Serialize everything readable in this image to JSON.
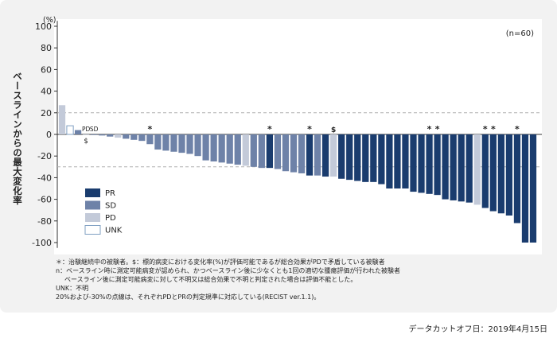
{
  "chart_data": {
    "type": "bar",
    "y_unit": "(%)",
    "ylabel": "ベースラインからの最大変化率",
    "ylim": [
      -105,
      105
    ],
    "yticks": [
      100,
      80,
      60,
      40,
      20,
      0,
      -20,
      -40,
      -60,
      -80,
      -100
    ],
    "n_label": "(n=60)",
    "reference_lines": [
      20,
      -30
    ],
    "grid": false,
    "legend_position": "bottom-left",
    "legend": [
      {
        "key": "PR",
        "label": "PR",
        "color": "#1a3c6e"
      },
      {
        "key": "SD",
        "label": "SD",
        "color": "#6e82a8"
      },
      {
        "key": "PD",
        "label": "PD",
        "color": "#c3cad9"
      },
      {
        "key": "UNK",
        "label": "UNK",
        "color": "#ffffff",
        "stroke": "#7f9fc2"
      }
    ],
    "bars": [
      {
        "value": 27,
        "response": "PD"
      },
      {
        "value": 8,
        "response": "UNK"
      },
      {
        "value": 4,
        "response": "SD"
      },
      {
        "value": 0,
        "response": "PD",
        "label": "PD"
      },
      {
        "value": 0,
        "response": "SD",
        "label": "SD",
        "sublabel": "$"
      },
      {
        "value": -1,
        "response": "SD"
      },
      {
        "value": -2,
        "response": "SD"
      },
      {
        "value": -3,
        "response": "PD"
      },
      {
        "value": -4,
        "response": "SD"
      },
      {
        "value": -5,
        "response": "SD"
      },
      {
        "value": -6,
        "response": "SD"
      },
      {
        "value": -9,
        "response": "SD",
        "marker": "*"
      },
      {
        "value": -14,
        "response": "SD"
      },
      {
        "value": -15,
        "response": "SD"
      },
      {
        "value": -16,
        "response": "SD"
      },
      {
        "value": -17,
        "response": "SD"
      },
      {
        "value": -18,
        "response": "SD"
      },
      {
        "value": -20,
        "response": "SD"
      },
      {
        "value": -24,
        "response": "SD"
      },
      {
        "value": -25,
        "response": "SD"
      },
      {
        "value": -26,
        "response": "SD"
      },
      {
        "value": -27,
        "response": "SD"
      },
      {
        "value": -28,
        "response": "SD"
      },
      {
        "value": -29,
        "response": "PD"
      },
      {
        "value": -30,
        "response": "SD"
      },
      {
        "value": -31,
        "response": "SD"
      },
      {
        "value": -31,
        "response": "PR",
        "marker": "*"
      },
      {
        "value": -32,
        "response": "SD"
      },
      {
        "value": -34,
        "response": "SD"
      },
      {
        "value": -35,
        "response": "SD"
      },
      {
        "value": -36,
        "response": "SD"
      },
      {
        "value": -38,
        "response": "PR",
        "marker": "*"
      },
      {
        "value": -38,
        "response": "SD"
      },
      {
        "value": -39,
        "response": "PR"
      },
      {
        "value": -39,
        "response": "PD",
        "marker": "$"
      },
      {
        "value": -41,
        "response": "PR"
      },
      {
        "value": -42,
        "response": "PR"
      },
      {
        "value": -43,
        "response": "PR"
      },
      {
        "value": -44,
        "response": "PR"
      },
      {
        "value": -44,
        "response": "PR"
      },
      {
        "value": -46,
        "response": "PR"
      },
      {
        "value": -50,
        "response": "PR"
      },
      {
        "value": -50,
        "response": "PR"
      },
      {
        "value": -50,
        "response": "PR"
      },
      {
        "value": -53,
        "response": "PR"
      },
      {
        "value": -54,
        "response": "PR"
      },
      {
        "value": -55,
        "response": "PR",
        "marker": "*"
      },
      {
        "value": -56,
        "response": "PR",
        "marker": "*"
      },
      {
        "value": -60,
        "response": "PR"
      },
      {
        "value": -61,
        "response": "PR"
      },
      {
        "value": -62,
        "response": "PR"
      },
      {
        "value": -63,
        "response": "PR"
      },
      {
        "value": -65,
        "response": "PD"
      },
      {
        "value": -68,
        "response": "PR",
        "marker": "*"
      },
      {
        "value": -71,
        "response": "PR",
        "marker": "*"
      },
      {
        "value": -73,
        "response": "PR"
      },
      {
        "value": -75,
        "response": "PR"
      },
      {
        "value": -82,
        "response": "PR",
        "marker": "*"
      },
      {
        "value": -100,
        "response": "PR"
      },
      {
        "value": -100,
        "response": "PR"
      }
    ]
  },
  "notes": [
    "＊：治験継続中の被験者。$：標的病変における変化率(%)が評価可能であるが総合効果がPDで矛盾している被験者",
    "n：ベースライン時に測定可能病変が認められ、かつベースライン後に少なくとも1回の適切な腫瘍評価が行われた被験者",
    "ベースライン後に測定可能病変に対して不明又は総合効果で不明と判定された場合は評価不能とした。",
    "UNK：不明",
    "20%および-30%の点線は、それぞれPDとPRの判定規準に対応している(RECIST ver.1.1)。"
  ],
  "data_cutoff": "データカットオフ日：2019年4月15日"
}
